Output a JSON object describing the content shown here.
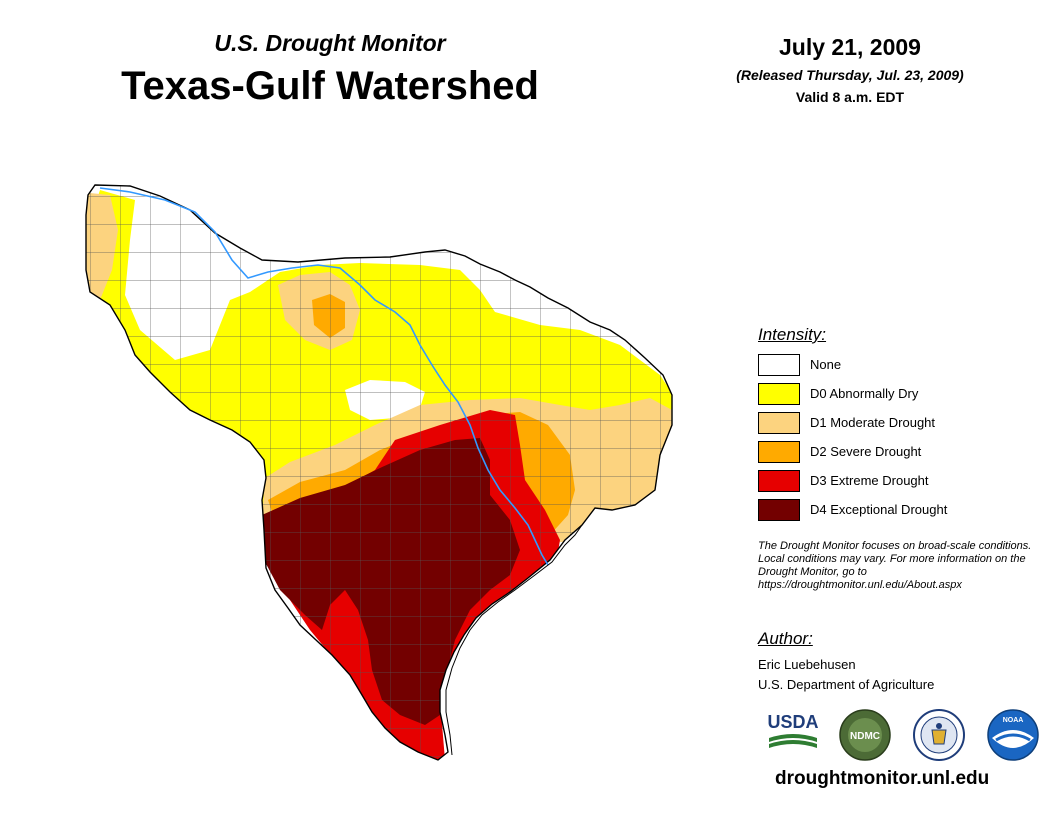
{
  "header": {
    "subtitle": "U.S. Drought Monitor",
    "title": "Texas-Gulf Watershed",
    "date": "July 21, 2009",
    "released": "(Released Thursday, Jul. 23, 2009)",
    "valid": "Valid 8 a.m. EDT"
  },
  "legend": {
    "title": "Intensity:",
    "items": [
      {
        "label": "None",
        "color": "#ffffff"
      },
      {
        "label": "D0 Abnormally Dry",
        "color": "#ffff00"
      },
      {
        "label": "D1 Moderate Drought",
        "color": "#fcd37f"
      },
      {
        "label": "D2 Severe Drought",
        "color": "#ffaa00"
      },
      {
        "label": "D3 Extreme Drought",
        "color": "#e60000"
      },
      {
        "label": "D4 Exceptional Drought",
        "color": "#730000"
      }
    ]
  },
  "note": "The Drought Monitor focuses on broad-scale conditions. Local conditions may vary. For more information on the Drought Monitor, go to https://droughtmonitor.unl.edu/About.aspx",
  "author": {
    "title": "Author:",
    "name": "Eric Luebehusen",
    "org": "U.S. Department of Agriculture"
  },
  "logos": [
    {
      "name": "usda-logo",
      "text": "USDA"
    },
    {
      "name": "ndmc-logo",
      "text": "NDMC"
    },
    {
      "name": "doc-seal",
      "text": ""
    },
    {
      "name": "noaa-logo",
      "text": "NOAA"
    }
  ],
  "website": "droughtmonitor.unl.edu",
  "colors": {
    "river": "#3399ff",
    "county_line": "#555555",
    "outline": "#000000"
  }
}
